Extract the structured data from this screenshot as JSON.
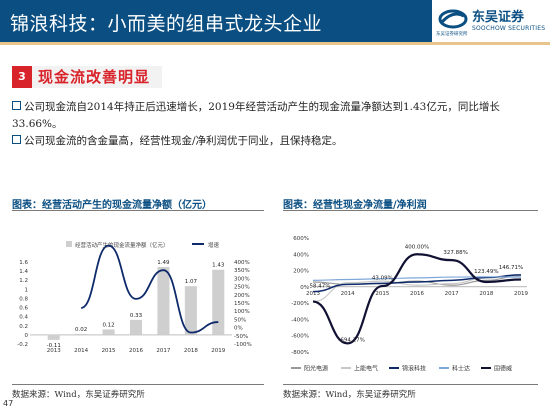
{
  "header": {
    "title": "锦浪科技：小而美的组串式龙头企业",
    "logo_cn": "东吴证券",
    "logo_en": "SOOCHOW SECURITIES",
    "logo_sub": "东吴证券研究所"
  },
  "section": {
    "number": "3",
    "title": "现金流改善明显"
  },
  "bullets": [
    "公司现金流自2014年持正后迅速增长，2019年经营活动产生的现金流量净额达到1.43亿元，同比增长33.66%。",
    "公司现金流的含金量高，经营性现金/净利润优于同业，且保持稳定。"
  ],
  "left_chart": {
    "caption": "图表：经营活动产生的现金流量净额（亿元）",
    "source": "数据来源：Wind，东吴证券研究所",
    "legend_bar": "经营活动产生的现金流量净额（亿元）",
    "legend_line": "增速"
  },
  "right_chart": {
    "caption": "图表：经营性现金净流量/净利润",
    "source": "数据来源：Wind，东吴证券研究所",
    "legend": [
      "阳光电源",
      "上能电气",
      "锦浪科技",
      "科士达",
      "固德威"
    ]
  },
  "page_number": "47",
  "colors": {
    "header_bg": "#0b4f82",
    "accent_red": "#d9232a",
    "bar_gray": "#cfcfcf",
    "line_navy": "#0e2a6b"
  },
  "chart_data": [
    {
      "type": "bar",
      "title": "经营活动产生的现金流量净额（亿元）",
      "categories": [
        "2013",
        "2014",
        "2015",
        "2016",
        "2017",
        "2018",
        "2019"
      ],
      "series": [
        {
          "name": "经营活动产生的现金流量净额（亿元）",
          "values": [
            -0.11,
            0.02,
            0.12,
            0.33,
            1.49,
            1.07,
            1.43
          ],
          "axis": "left"
        },
        {
          "name": "增速",
          "values": [
            null,
            120,
            500,
            175,
            350,
            -30,
            33.66
          ],
          "axis": "right",
          "type": "line"
        }
      ],
      "data_labels": [
        "-0.11",
        "0.02",
        "0.12",
        "0.33",
        "1.49",
        "1.07",
        "1.43"
      ],
      "ylim": [
        -0.2,
        1.6
      ],
      "yticks": [
        "1.6",
        "1.4",
        "1.2",
        "1",
        "0.8",
        "0.6",
        "0.4",
        "0.2",
        "0",
        "-0.2"
      ],
      "y2lim": [
        -100,
        400
      ],
      "y2ticks": [
        "400%",
        "350%",
        "300%",
        "250%",
        "200%",
        "150%",
        "100%",
        "50%",
        "0%",
        "-50%",
        "-100%"
      ]
    },
    {
      "type": "line",
      "title": "经营性现金净流量/净利润",
      "x": [
        "2013",
        "2014",
        "2015",
        "2016",
        "2017",
        "2018",
        "2019"
      ],
      "series": [
        {
          "name": "阳光电源",
          "values": [
            60,
            30,
            40,
            70,
            20,
            80,
            140
          ]
        },
        {
          "name": "上能电气",
          "values": [
            -180,
            50,
            70,
            20,
            40,
            110,
            130
          ]
        },
        {
          "name": "锦浪科技",
          "values": [
            -58.47,
            30,
            43.09,
            60,
            80,
            115,
            146.71
          ]
        },
        {
          "name": "科士达",
          "values": [
            80,
            90,
            100,
            110,
            120,
            123.49,
            120
          ]
        },
        {
          "name": "固德威",
          "values": [
            -180,
            -694.17,
            10,
            400,
            327.88,
            60,
            90
          ]
        }
      ],
      "data_labels": [
        "400.00%",
        "327.88%",
        "43.09%",
        "-58.47%",
        "-694.17%",
        "123.49%",
        "146.71%"
      ],
      "ylim": [
        -800,
        600
      ],
      "yticks": [
        "600%",
        "400%",
        "200%",
        "0%",
        "-200%",
        "-400%",
        "-600%",
        "-800%"
      ]
    }
  ]
}
